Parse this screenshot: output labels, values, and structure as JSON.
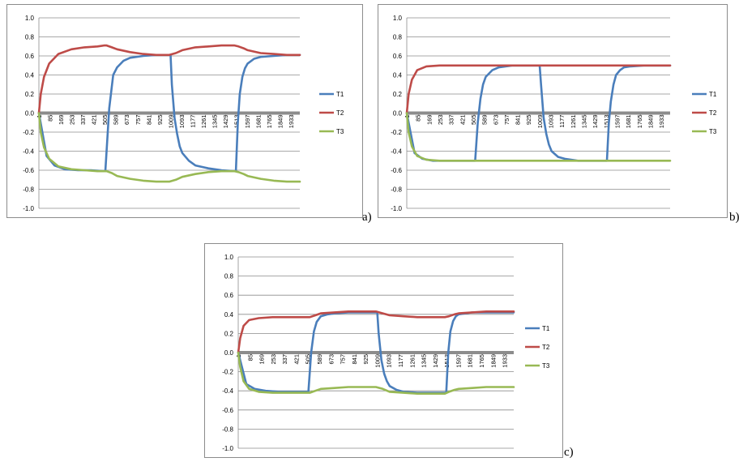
{
  "chart_data": [
    {
      "panel_label": "a)",
      "type": "line",
      "x_tick_labels": [
        "1",
        "85",
        "169",
        "253",
        "337",
        "421",
        "505",
        "589",
        "673",
        "757",
        "841",
        "925",
        "1009",
        "1093",
        "1177",
        "1261",
        "1345",
        "1429",
        "1513",
        "1597",
        "1681",
        "1765",
        "1849",
        "1933"
      ],
      "xlim": [
        1,
        2000
      ],
      "ylim": [
        -1.0,
        1.0
      ],
      "y_ticks": [
        "-1.0",
        "-0.8",
        "-0.6",
        "-0.4",
        "-0.2",
        "0.0",
        "0.2",
        "0.4",
        "0.6",
        "0.8",
        "1.0"
      ],
      "grid": true,
      "legend_position": "right",
      "series": [
        {
          "name": "T1",
          "color": "#4a7ebb",
          "x": [
            1,
            60,
            120,
            200,
            300,
            400,
            500,
            510,
            540,
            570,
            600,
            650,
            700,
            800,
            900,
            1000,
            1010,
            1020,
            1040,
            1060,
            1080,
            1100,
            1150,
            1200,
            1300,
            1400,
            1500,
            1510,
            1525,
            1540,
            1560,
            1580,
            1600,
            1650,
            1700,
            1800,
            1900,
            2000
          ],
          "y": [
            0,
            -0.45,
            -0.55,
            -0.59,
            -0.6,
            -0.6,
            -0.61,
            -0.61,
            0.05,
            0.4,
            0.48,
            0.55,
            0.58,
            0.6,
            0.61,
            0.61,
            0.61,
            0.3,
            -0.05,
            -0.22,
            -0.35,
            -0.42,
            -0.5,
            -0.55,
            -0.58,
            -0.6,
            -0.61,
            -0.61,
            -0.1,
            0.2,
            0.38,
            0.47,
            0.52,
            0.57,
            0.59,
            0.6,
            0.61,
            0.61
          ]
        },
        {
          "name": "T2",
          "color": "#be4b48",
          "x": [
            1,
            15,
            40,
            80,
            150,
            250,
            350,
            450,
            500,
            520,
            560,
            600,
            700,
            800,
            900,
            1000,
            1050,
            1100,
            1200,
            1300,
            1400,
            1500,
            1530,
            1570,
            1600,
            1700,
            1800,
            1900,
            2000
          ],
          "y": [
            0,
            0.2,
            0.38,
            0.52,
            0.62,
            0.67,
            0.69,
            0.7,
            0.71,
            0.71,
            0.69,
            0.67,
            0.64,
            0.62,
            0.61,
            0.61,
            0.63,
            0.66,
            0.69,
            0.7,
            0.71,
            0.71,
            0.7,
            0.68,
            0.66,
            0.63,
            0.62,
            0.61,
            0.61
          ]
        },
        {
          "name": "T3",
          "color": "#98b954",
          "x": [
            1,
            15,
            40,
            80,
            150,
            250,
            350,
            450,
            500,
            520,
            560,
            600,
            700,
            800,
            900,
            1000,
            1050,
            1100,
            1200,
            1300,
            1400,
            1500,
            1530,
            1570,
            1600,
            1700,
            1800,
            1900,
            2000
          ],
          "y": [
            0,
            -0.2,
            -0.36,
            -0.48,
            -0.56,
            -0.59,
            -0.6,
            -0.61,
            -0.61,
            -0.61,
            -0.63,
            -0.66,
            -0.69,
            -0.71,
            -0.72,
            -0.72,
            -0.7,
            -0.67,
            -0.64,
            -0.62,
            -0.61,
            -0.61,
            -0.62,
            -0.64,
            -0.66,
            -0.69,
            -0.71,
            -0.72,
            -0.72
          ]
        }
      ]
    },
    {
      "panel_label": "b)",
      "type": "line",
      "x_tick_labels": [
        "1",
        "85",
        "169",
        "253",
        "337",
        "421",
        "505",
        "589",
        "673",
        "757",
        "841",
        "925",
        "1009",
        "1093",
        "1177",
        "1261",
        "1345",
        "1429",
        "1513",
        "1597",
        "1681",
        "1765",
        "1849",
        "1933"
      ],
      "xlim": [
        1,
        2000
      ],
      "ylim": [
        -1.0,
        1.0
      ],
      "y_ticks": [
        "-1.0",
        "-0.8",
        "-0.6",
        "-0.4",
        "-0.2",
        "0.0",
        "0.2",
        "0.4",
        "0.6",
        "0.8",
        "1.0"
      ],
      "grid": true,
      "legend_position": "right",
      "series": [
        {
          "name": "T1",
          "color": "#4a7ebb",
          "x": [
            1,
            60,
            120,
            200,
            300,
            400,
            500,
            520,
            540,
            560,
            580,
            600,
            650,
            700,
            800,
            900,
            1000,
            1010,
            1020,
            1040,
            1060,
            1080,
            1100,
            1150,
            1200,
            1300,
            1400,
            1500,
            1520,
            1535,
            1550,
            1570,
            1590,
            1620,
            1650,
            1700,
            1800,
            1900,
            2000
          ],
          "y": [
            0,
            -0.42,
            -0.48,
            -0.5,
            -0.5,
            -0.5,
            -0.5,
            -0.5,
            -0.1,
            0.15,
            0.3,
            0.38,
            0.45,
            0.48,
            0.5,
            0.5,
            0.5,
            0.5,
            0.3,
            -0.05,
            -0.22,
            -0.33,
            -0.4,
            -0.46,
            -0.48,
            -0.5,
            -0.5,
            -0.5,
            -0.5,
            -0.1,
            0.12,
            0.3,
            0.4,
            0.45,
            0.48,
            0.49,
            0.5,
            0.5,
            0.5
          ]
        },
        {
          "name": "T2",
          "color": "#be4b48",
          "x": [
            1,
            15,
            40,
            80,
            150,
            250,
            400,
            600,
            800,
            1000,
            1200,
            1400,
            1600,
            1800,
            2000
          ],
          "y": [
            0,
            0.2,
            0.35,
            0.45,
            0.49,
            0.5,
            0.5,
            0.5,
            0.5,
            0.5,
            0.5,
            0.5,
            0.5,
            0.5,
            0.5
          ]
        },
        {
          "name": "T3",
          "color": "#98b954",
          "x": [
            1,
            15,
            40,
            80,
            150,
            250,
            400,
            600,
            800,
            1000,
            1200,
            1400,
            1600,
            1800,
            2000
          ],
          "y": [
            0,
            -0.2,
            -0.35,
            -0.45,
            -0.49,
            -0.5,
            -0.5,
            -0.5,
            -0.5,
            -0.5,
            -0.5,
            -0.5,
            -0.5,
            -0.5,
            -0.5
          ]
        }
      ]
    },
    {
      "panel_label": "c)",
      "type": "line",
      "x_tick_labels": [
        "1",
        "85",
        "169",
        "253",
        "337",
        "421",
        "505",
        "589",
        "673",
        "757",
        "841",
        "925",
        "1009",
        "1093",
        "1177",
        "1261",
        "1345",
        "1429",
        "1513",
        "1597",
        "1681",
        "1765",
        "1849",
        "1933"
      ],
      "xlim": [
        1,
        2000
      ],
      "ylim": [
        -1.0,
        1.0
      ],
      "y_ticks": [
        "-1.0",
        "-0.8",
        "-0.6",
        "-0.4",
        "-0.2",
        "0.0",
        "0.2",
        "0.4",
        "0.6",
        "0.8",
        "1.0"
      ],
      "grid": true,
      "legend_position": "right",
      "series": [
        {
          "name": "T1",
          "color": "#4a7ebb",
          "x": [
            1,
            60,
            120,
            200,
            300,
            400,
            500,
            510,
            530,
            550,
            570,
            600,
            650,
            700,
            800,
            900,
            1000,
            1010,
            1020,
            1040,
            1060,
            1080,
            1100,
            1150,
            1200,
            1300,
            1400,
            1500,
            1510,
            1525,
            1540,
            1560,
            1580,
            1600,
            1650,
            1700,
            1800,
            1900,
            2000
          ],
          "y": [
            0,
            -0.33,
            -0.38,
            -0.4,
            -0.41,
            -0.41,
            -0.41,
            -0.41,
            0.0,
            0.22,
            0.32,
            0.38,
            0.4,
            0.41,
            0.42,
            0.42,
            0.42,
            0.42,
            0.2,
            -0.08,
            -0.22,
            -0.3,
            -0.35,
            -0.39,
            -0.41,
            -0.42,
            -0.42,
            -0.42,
            -0.42,
            0.0,
            0.22,
            0.33,
            0.38,
            0.4,
            0.41,
            0.42,
            0.42,
            0.42,
            0.42
          ]
        },
        {
          "name": "T2",
          "color": "#be4b48",
          "x": [
            1,
            15,
            40,
            80,
            150,
            250,
            350,
            450,
            500,
            520,
            560,
            600,
            700,
            800,
            900,
            1000,
            1050,
            1100,
            1200,
            1300,
            1400,
            1500,
            1530,
            1570,
            1600,
            1700,
            1800,
            1900,
            2000
          ],
          "y": [
            0,
            0.15,
            0.28,
            0.34,
            0.36,
            0.37,
            0.37,
            0.37,
            0.37,
            0.37,
            0.39,
            0.41,
            0.42,
            0.43,
            0.43,
            0.43,
            0.41,
            0.39,
            0.38,
            0.37,
            0.37,
            0.37,
            0.38,
            0.4,
            0.41,
            0.42,
            0.43,
            0.43,
            0.43
          ]
        },
        {
          "name": "T3",
          "color": "#98b954",
          "x": [
            1,
            15,
            40,
            80,
            150,
            250,
            350,
            450,
            500,
            520,
            560,
            600,
            700,
            800,
            900,
            1000,
            1050,
            1100,
            1200,
            1300,
            1400,
            1500,
            1530,
            1570,
            1600,
            1700,
            1800,
            1900,
            2000
          ],
          "y": [
            0,
            -0.15,
            -0.3,
            -0.38,
            -0.41,
            -0.42,
            -0.42,
            -0.42,
            -0.42,
            -0.42,
            -0.4,
            -0.38,
            -0.37,
            -0.36,
            -0.36,
            -0.36,
            -0.38,
            -0.41,
            -0.42,
            -0.43,
            -0.43,
            -0.43,
            -0.41,
            -0.39,
            -0.38,
            -0.37,
            -0.36,
            -0.36,
            -0.36
          ]
        }
      ]
    }
  ]
}
